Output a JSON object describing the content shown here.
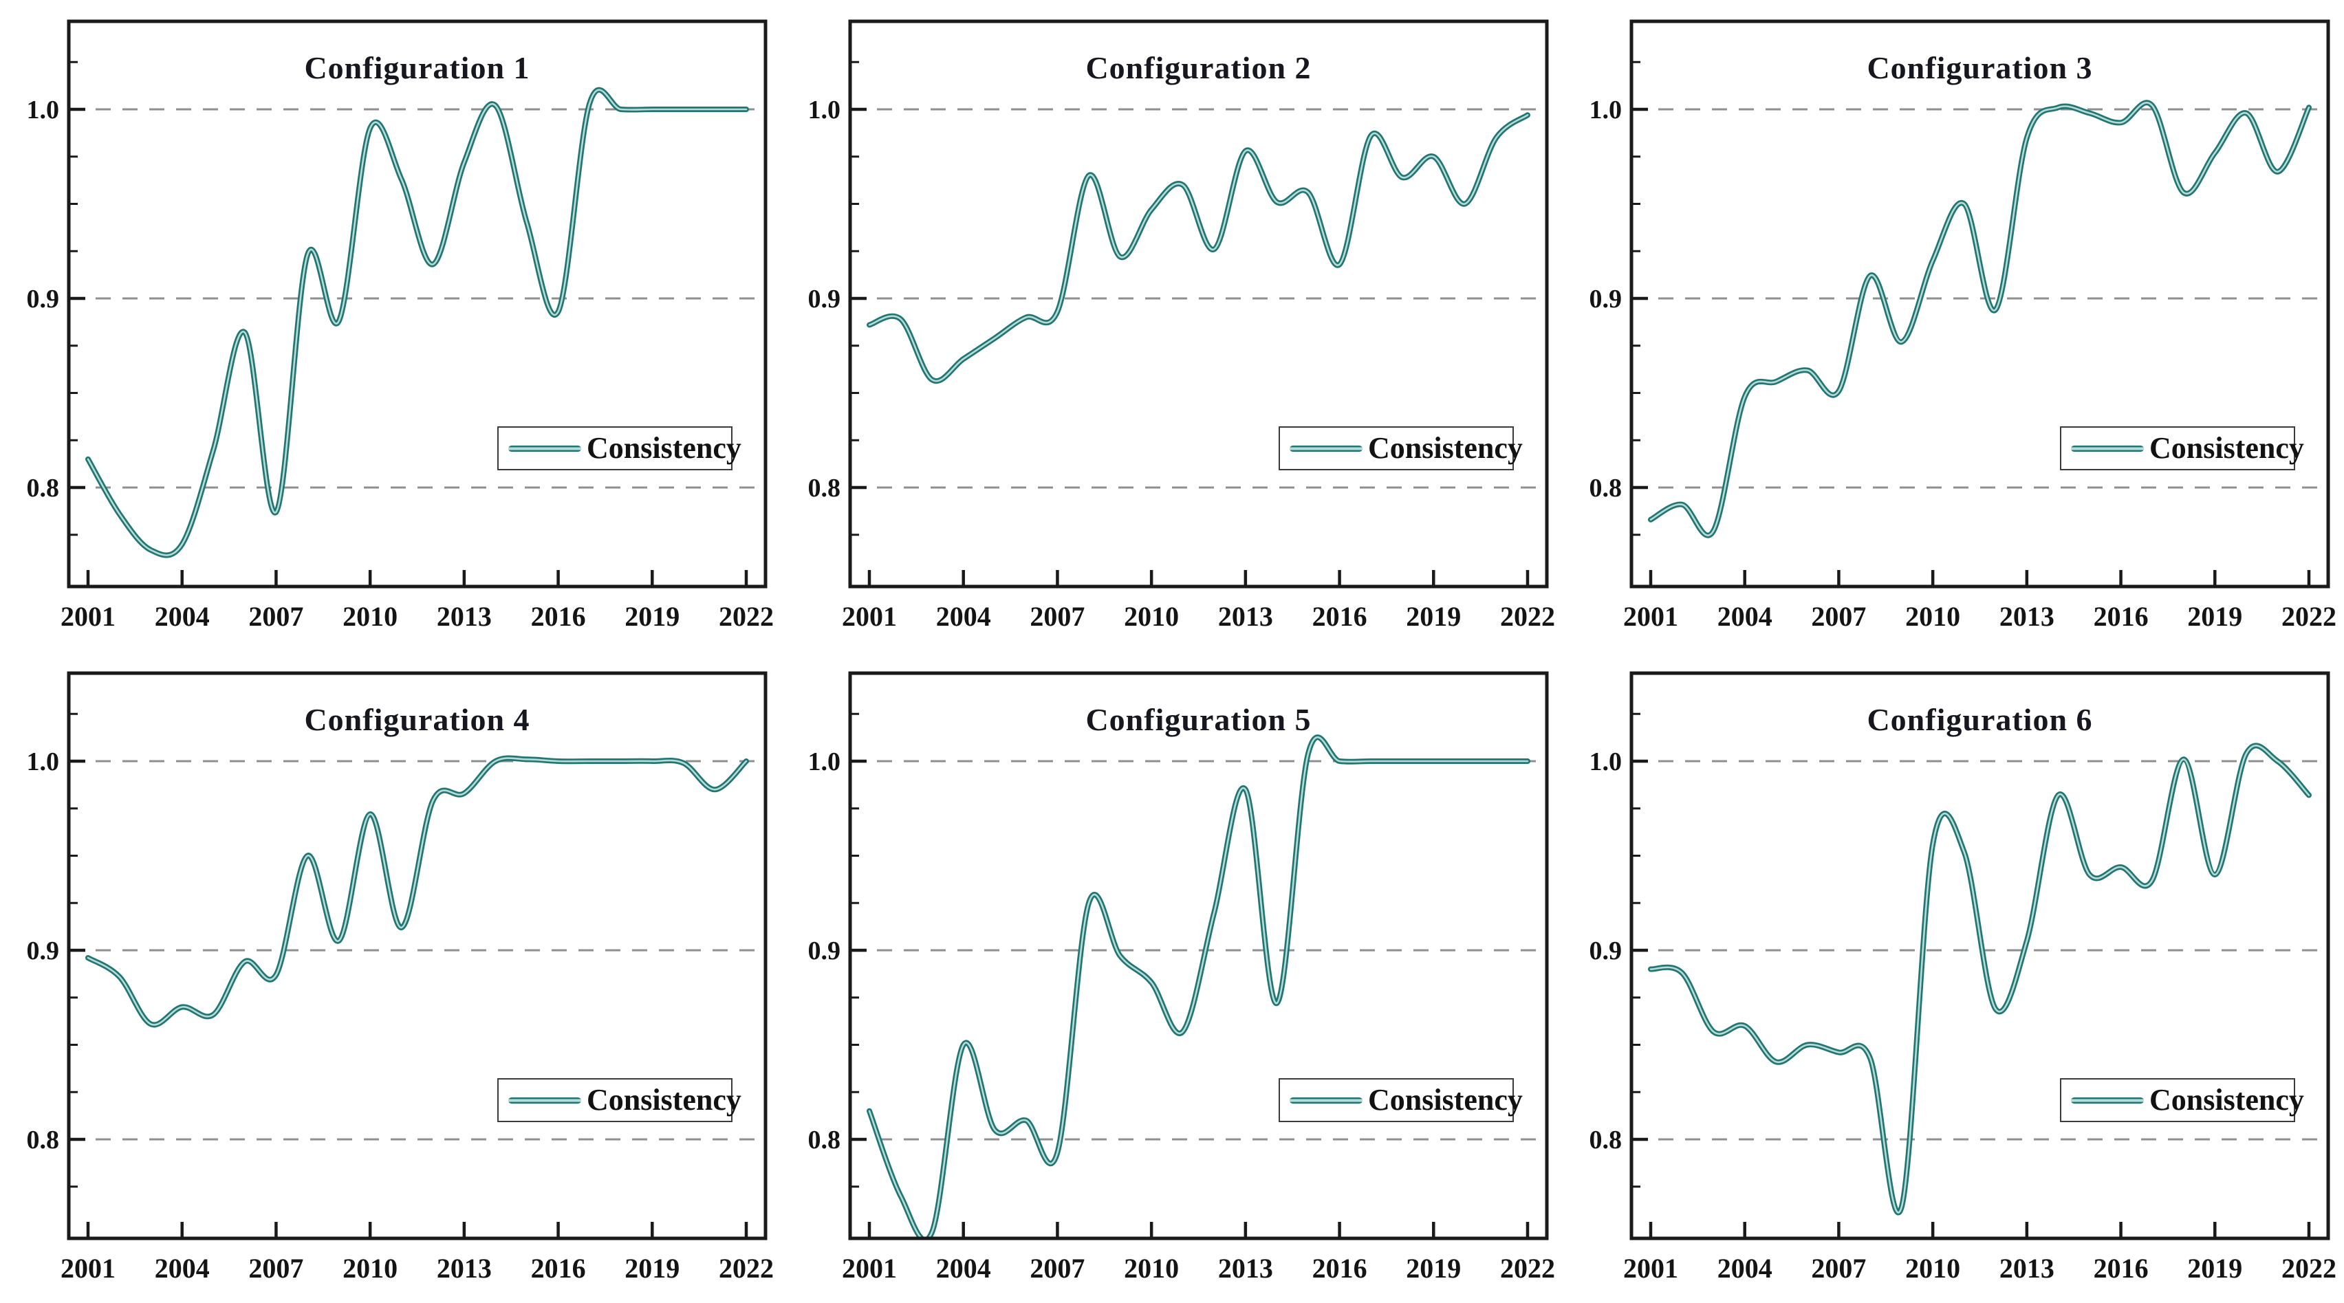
{
  "style": {
    "line_color": "#217672",
    "line_inner_color": "#b7dbd8",
    "grid_color": "#8f8f8f",
    "axis_color": "#1a1a1a",
    "text_color": "#141414",
    "title_color": "#17171f",
    "legend_border_color": "#3c3c3c",
    "background_color": "#ffffff"
  },
  "chart_data": [
    {
      "type": "line",
      "title": "Configuration 1",
      "legend_label": "Consistency",
      "legend_position": "lower-right",
      "grid": "horizontal dashed at yticks",
      "x": [
        2001,
        2002,
        2003,
        2004,
        2005,
        2006,
        2007,
        2008,
        2009,
        2010,
        2011,
        2012,
        2013,
        2014,
        2015,
        2016,
        2017,
        2018,
        2019,
        2020,
        2021,
        2022
      ],
      "xticks": [
        2001,
        2004,
        2007,
        2010,
        2013,
        2016,
        2019,
        2022
      ],
      "yticks": [
        0.8,
        0.9,
        1.0
      ],
      "ytick_labels": [
        "0.8",
        "0.9",
        "1.0"
      ],
      "ylim": [
        0.748,
        1.047
      ],
      "xlabel": "",
      "ylabel": "",
      "series": [
        {
          "name": "Consistency",
          "values": [
            0.815,
            0.786,
            0.767,
            0.77,
            0.82,
            0.882,
            0.787,
            0.923,
            0.888,
            0.99,
            0.963,
            0.918,
            0.972,
            1.002,
            0.94,
            0.893,
            1.003,
            1.0,
            1.0,
            1.0,
            1.0,
            1.0
          ]
        }
      ]
    },
    {
      "type": "line",
      "title": "Configuration 2",
      "legend_label": "Consistency",
      "legend_position": "lower-right",
      "grid": "horizontal dashed at yticks",
      "x": [
        2001,
        2002,
        2003,
        2004,
        2005,
        2006,
        2007,
        2008,
        2009,
        2010,
        2011,
        2012,
        2013,
        2014,
        2015,
        2016,
        2017,
        2018,
        2019,
        2020,
        2021,
        2022
      ],
      "xticks": [
        2001,
        2004,
        2007,
        2010,
        2013,
        2016,
        2019,
        2022
      ],
      "yticks": [
        0.8,
        0.9,
        1.0
      ],
      "ytick_labels": [
        "0.8",
        "0.9",
        "1.0"
      ],
      "ylim": [
        0.748,
        1.047
      ],
      "xlabel": "",
      "ylabel": "",
      "series": [
        {
          "name": "Consistency",
          "values": [
            0.886,
            0.889,
            0.857,
            0.868,
            0.879,
            0.89,
            0.893,
            0.965,
            0.922,
            0.947,
            0.96,
            0.926,
            0.978,
            0.951,
            0.956,
            0.918,
            0.986,
            0.964,
            0.975,
            0.95,
            0.985,
            0.997
          ]
        }
      ]
    },
    {
      "type": "line",
      "title": "Configuration 3",
      "legend_label": "Consistency",
      "legend_position": "lower-right",
      "grid": "horizontal dashed at yticks",
      "x": [
        2001,
        2002,
        2003,
        2004,
        2005,
        2006,
        2007,
        2008,
        2009,
        2010,
        2011,
        2012,
        2013,
        2014,
        2015,
        2016,
        2017,
        2018,
        2019,
        2020,
        2021,
        2022
      ],
      "xticks": [
        2001,
        2004,
        2007,
        2010,
        2013,
        2016,
        2019,
        2022
      ],
      "yticks": [
        0.8,
        0.9,
        1.0
      ],
      "ytick_labels": [
        "0.8",
        "0.9",
        "1.0"
      ],
      "ylim": [
        0.748,
        1.047
      ],
      "xlabel": "",
      "ylabel": "",
      "series": [
        {
          "name": "Consistency",
          "values": [
            0.783,
            0.791,
            0.777,
            0.848,
            0.856,
            0.862,
            0.851,
            0.912,
            0.877,
            0.92,
            0.95,
            0.894,
            0.985,
            1.001,
            0.998,
            0.993,
            1.002,
            0.956,
            0.977,
            0.998,
            0.967,
            1.001
          ]
        }
      ]
    },
    {
      "type": "line",
      "title": "Configuration 4",
      "legend_label": "Consistency",
      "legend_position": "lower-right",
      "grid": "horizontal dashed at yticks",
      "x": [
        2001,
        2002,
        2003,
        2004,
        2005,
        2006,
        2007,
        2008,
        2009,
        2010,
        2011,
        2012,
        2013,
        2014,
        2015,
        2016,
        2017,
        2018,
        2019,
        2020,
        2021,
        2022
      ],
      "xticks": [
        2001,
        2004,
        2007,
        2010,
        2013,
        2016,
        2019,
        2022
      ],
      "yticks": [
        0.8,
        0.9,
        1.0
      ],
      "ytick_labels": [
        "0.8",
        "0.9",
        "1.0"
      ],
      "ylim": [
        0.748,
        1.047
      ],
      "xlabel": "",
      "ylabel": "",
      "series": [
        {
          "name": "Consistency",
          "values": [
            0.896,
            0.886,
            0.861,
            0.87,
            0.866,
            0.894,
            0.887,
            0.95,
            0.905,
            0.972,
            0.912,
            0.979,
            0.983,
            1.0,
            1.001,
            1.0,
            1.0,
            1.0,
            1.0,
            0.999,
            0.985,
            1.0
          ]
        }
      ]
    },
    {
      "type": "line",
      "title": "Configuration 5",
      "legend_label": "Consistency",
      "legend_position": "lower-right",
      "grid": "horizontal dashed at yticks",
      "x": [
        2001,
        2002,
        2003,
        2004,
        2005,
        2006,
        2007,
        2008,
        2009,
        2010,
        2011,
        2012,
        2013,
        2014,
        2015,
        2016,
        2017,
        2018,
        2019,
        2020,
        2021,
        2022
      ],
      "xticks": [
        2001,
        2004,
        2007,
        2010,
        2013,
        2016,
        2019,
        2022
      ],
      "yticks": [
        0.8,
        0.9,
        1.0
      ],
      "ytick_labels": [
        "0.8",
        "0.9",
        "1.0"
      ],
      "ylim": [
        0.748,
        1.047
      ],
      "xlabel": "",
      "ylabel": "",
      "series": [
        {
          "name": "Consistency",
          "values": [
            0.815,
            0.77,
            0.751,
            0.85,
            0.805,
            0.81,
            0.793,
            0.925,
            0.897,
            0.883,
            0.857,
            0.92,
            0.985,
            0.872,
            1.004,
            1.0,
            1.0,
            1.0,
            1.0,
            1.0,
            1.0,
            1.0
          ]
        }
      ]
    },
    {
      "type": "line",
      "title": "Configuration 6",
      "legend_label": "Consistency",
      "legend_position": "lower-right",
      "grid": "horizontal dashed at yticks",
      "x": [
        2001,
        2002,
        2003,
        2004,
        2005,
        2006,
        2007,
        2008,
        2009,
        2010,
        2011,
        2012,
        2013,
        2014,
        2015,
        2016,
        2017,
        2018,
        2019,
        2020,
        2021,
        2022
      ],
      "xticks": [
        2001,
        2004,
        2007,
        2010,
        2013,
        2016,
        2019,
        2022
      ],
      "yticks": [
        0.8,
        0.9,
        1.0
      ],
      "ytick_labels": [
        "0.8",
        "0.9",
        "1.0"
      ],
      "ylim": [
        0.748,
        1.047
      ],
      "xlabel": "",
      "ylabel": "",
      "series": [
        {
          "name": "Consistency",
          "values": [
            0.89,
            0.888,
            0.857,
            0.86,
            0.841,
            0.85,
            0.846,
            0.843,
            0.764,
            0.956,
            0.952,
            0.869,
            0.905,
            0.982,
            0.94,
            0.944,
            0.937,
            1.001,
            0.94,
            1.004,
            1.0,
            0.982
          ]
        }
      ]
    }
  ]
}
